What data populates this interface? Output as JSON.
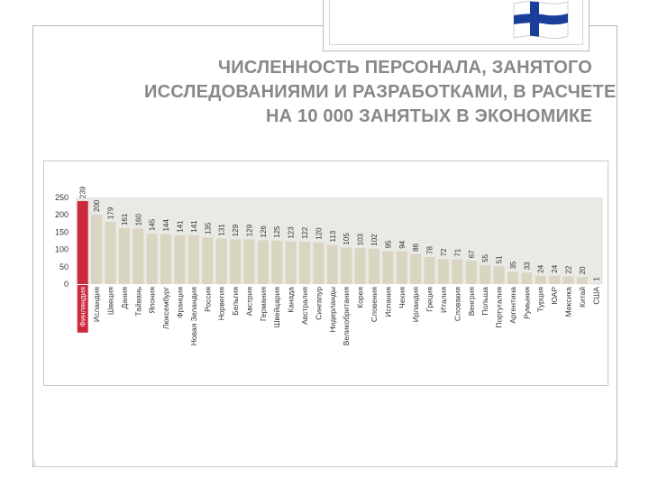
{
  "slide": {
    "title_lines": [
      "ЧИСЛЕННОСТЬ ПЕРСОНАЛА, ЗАНЯТОГО",
      "ИССЛЕДОВАНИЯМИ И РАЗРАБОТКАМИ, В РАСЧЕТЕ",
      "НА 10 000 ЗАНЯТЫХ В ЭКОНОМИКЕ"
    ],
    "flag_icon": "finland-flag-icon"
  },
  "colors": {
    "bar": "#d9d5c0",
    "highlight_bar": "#cc2a3c",
    "plot_background": "#e9e9e5",
    "title": "#888888",
    "flag_blue": "#1a3f9a"
  },
  "chart_data": {
    "type": "bar",
    "title": "",
    "xlabel": "",
    "ylabel": "",
    "ylim": [
      0,
      250
    ],
    "yticks": [
      0,
      50,
      100,
      150,
      200,
      250
    ],
    "grid": false,
    "highlight_category": "Финляндия",
    "categories": [
      "Финляндия",
      "Исландия",
      "Швеция",
      "Дания",
      "Тайвань",
      "Япония",
      "Люксембург",
      "Франция",
      "Новая Зеландия",
      "Россия",
      "Норвегия",
      "Бельгия",
      "Австрия",
      "Германия",
      "Швейцария",
      "Канада",
      "Австралия",
      "Сингапур",
      "Нидерланды",
      "Великобритания",
      "Корея",
      "Словения",
      "Испания",
      "Чехия",
      "Ирландия",
      "Греция",
      "Италия",
      "Словакия",
      "Венгрия",
      "Польша",
      "Португалия",
      "Аргентина",
      "Румыния",
      "Турция",
      "ЮАР",
      "Мексика",
      "Китай",
      "США"
    ],
    "values": [
      239,
      200,
      179,
      161,
      160,
      145,
      144,
      141,
      141,
      135,
      131,
      129,
      129,
      126,
      125,
      123,
      122,
      120,
      113,
      105,
      103,
      102,
      95,
      94,
      86,
      78,
      72,
      71,
      67,
      55,
      51,
      35,
      33,
      24,
      24,
      22,
      20,
      1
    ],
    "value_labels": [
      "239",
      "200",
      "179",
      "161",
      "160",
      "145",
      "144",
      "141",
      "141",
      "135",
      "131",
      "129",
      "129",
      "126",
      "125",
      "123",
      "122",
      "120",
      "113",
      "105",
      "103",
      "102",
      "95",
      "94",
      "86",
      "78",
      "72",
      "71",
      "67",
      "55",
      "51",
      "35",
      "33",
      "24",
      "24",
      "22",
      "20",
      "1"
    ]
  }
}
